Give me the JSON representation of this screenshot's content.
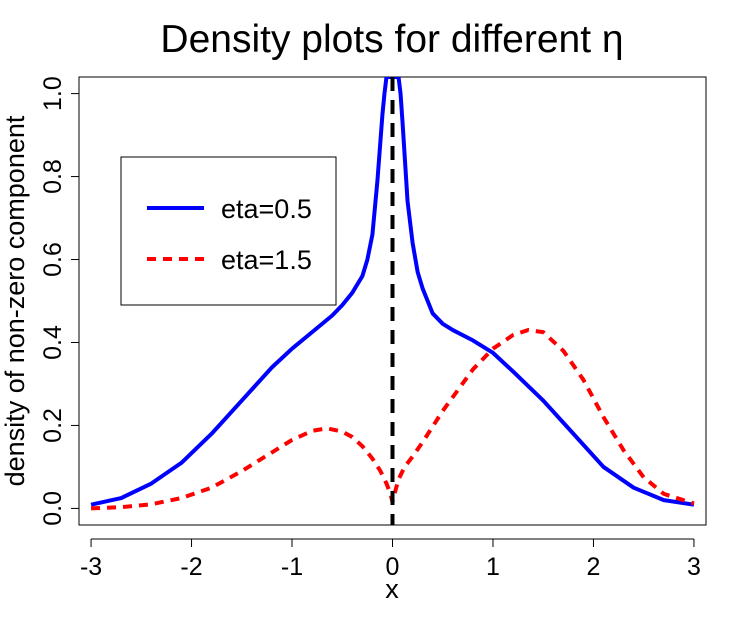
{
  "chart_data": {
    "type": "line",
    "title": "Density plots for different η",
    "xlabel": "x",
    "ylabel": "density of non-zero component",
    "xlim": [
      -3.12,
      3.12
    ],
    "ylim": [
      -0.04,
      1.04
    ],
    "x_ticks": [
      -3,
      -2,
      -1,
      0,
      1,
      2,
      3
    ],
    "x_tick_labels": [
      "-3",
      "-2",
      "-1",
      "0",
      "1",
      "2",
      "3"
    ],
    "y_ticks": [
      0.0,
      0.2,
      0.4,
      0.6,
      0.8,
      1.0
    ],
    "y_tick_labels": [
      "0.0",
      "0.2",
      "0.4",
      "0.6",
      "0.8",
      "1.0"
    ],
    "grid": false,
    "legend_position": "upper-left",
    "vline": {
      "x": 0,
      "style": "dashed",
      "color": "#000000"
    },
    "series": [
      {
        "name": "eta=0.5",
        "color": "#0000ff",
        "style": "solid",
        "x": [
          -3,
          -2.7,
          -2.4,
          -2.1,
          -1.8,
          -1.5,
          -1.2,
          -1.0,
          -0.8,
          -0.6,
          -0.5,
          -0.4,
          -0.3,
          -0.25,
          -0.2,
          -0.15,
          -0.1,
          -0.08,
          -0.06,
          -0.05,
          -0.04,
          0.04,
          0.05,
          0.06,
          0.08,
          0.1,
          0.15,
          0.2,
          0.25,
          0.3,
          0.4,
          0.5,
          0.6,
          0.8,
          1.0,
          1.2,
          1.5,
          1.8,
          2.1,
          2.4,
          2.7,
          3
        ],
        "y": [
          0.009,
          0.025,
          0.06,
          0.11,
          0.18,
          0.26,
          0.34,
          0.385,
          0.425,
          0.465,
          0.49,
          0.52,
          0.56,
          0.6,
          0.66,
          0.79,
          0.95,
          1.0,
          1.04,
          1.04,
          1.04,
          1.04,
          1.04,
          1.04,
          1.0,
          0.93,
          0.74,
          0.64,
          0.57,
          0.53,
          0.47,
          0.445,
          0.43,
          0.405,
          0.375,
          0.33,
          0.26,
          0.18,
          0.1,
          0.05,
          0.02,
          0.009
        ]
      },
      {
        "name": "eta=1.5",
        "color": "#ff0000",
        "style": "dashed",
        "x": [
          -3,
          -2.7,
          -2.4,
          -2.1,
          -1.8,
          -1.5,
          -1.2,
          -1.0,
          -0.8,
          -0.65,
          -0.5,
          -0.4,
          -0.3,
          -0.2,
          -0.12,
          -0.06,
          -0.02,
          0.0,
          0.02,
          0.06,
          0.12,
          0.2,
          0.3,
          0.5,
          0.8,
          1.0,
          1.2,
          1.35,
          1.5,
          1.7,
          1.9,
          2.1,
          2.3,
          2.5,
          2.7,
          3
        ],
        "y": [
          0.0,
          0.003,
          0.01,
          0.025,
          0.05,
          0.09,
          0.135,
          0.165,
          0.187,
          0.193,
          0.185,
          0.172,
          0.15,
          0.12,
          0.09,
          0.06,
          0.035,
          0.015,
          0.035,
          0.07,
          0.1,
          0.125,
          0.16,
          0.235,
          0.335,
          0.385,
          0.418,
          0.43,
          0.425,
          0.38,
          0.31,
          0.22,
          0.14,
          0.075,
          0.035,
          0.012
        ]
      }
    ]
  }
}
